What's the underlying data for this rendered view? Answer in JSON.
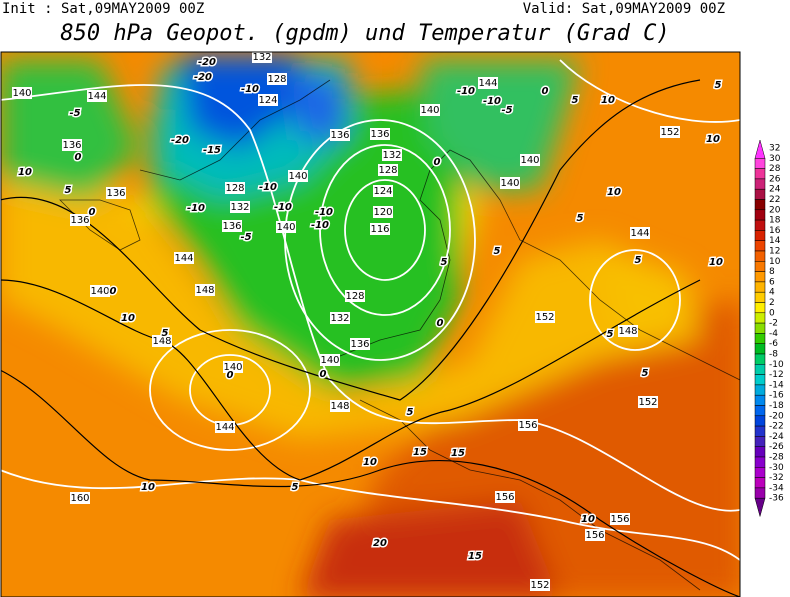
{
  "header": {
    "init": "Init : Sat,09MAY2009 00Z",
    "valid": "Valid: Sat,09MAY2009 00Z",
    "title": "850 hPa Geopot. (gpdm) und Temperatur (Grad C)"
  },
  "map": {
    "geopotential_labels": [
      140,
      144,
      136,
      136,
      136,
      144,
      140,
      148,
      148,
      140,
      144,
      160,
      132,
      128,
      124,
      128,
      132,
      136,
      140,
      140,
      136,
      136,
      140,
      132,
      128,
      124,
      120,
      116,
      128,
      132,
      136,
      140,
      148,
      144,
      140,
      140,
      152,
      144,
      152,
      148,
      152,
      156,
      156,
      156,
      156,
      152
    ],
    "temperature_labels": [
      -20,
      -20,
      -10,
      -5,
      -20,
      -15,
      -10,
      -10,
      -5,
      -10,
      -10,
      -10,
      0,
      5,
      10,
      0,
      0,
      10,
      5,
      0,
      0,
      5,
      10,
      15,
      15,
      5,
      10,
      20,
      15,
      10,
      10,
      10,
      5,
      5,
      10,
      5,
      10,
      5,
      5,
      5,
      0,
      5,
      -10,
      -10,
      -5,
      0,
      0,
      5
    ]
  },
  "colorbar": {
    "labels": [
      32,
      30,
      28,
      26,
      24,
      22,
      20,
      18,
      16,
      14,
      12,
      10,
      8,
      6,
      4,
      2,
      0,
      -2,
      -4,
      -6,
      -8,
      -10,
      -12,
      -14,
      -16,
      -18,
      -20,
      -22,
      -24,
      -26,
      -28,
      -30,
      -32,
      -34,
      -36
    ],
    "colors": [
      "#ff33ff",
      "#ff44dd",
      "#ee3399",
      "#cc2277",
      "#aa1144",
      "#880000",
      "#a00010",
      "#c01010",
      "#d82200",
      "#ec4400",
      "#f26000",
      "#f87800",
      "#ff9900",
      "#ffb400",
      "#ffcc00",
      "#ffee00",
      "#ccee00",
      "#88dd00",
      "#33cc00",
      "#00bb22",
      "#00cc66",
      "#00ccaa",
      "#00cccc",
      "#00aadd",
      "#0088ee",
      "#0066ee",
      "#0044dd",
      "#2233cc",
      "#4422bb",
      "#6600bb",
      "#8800cc",
      "#aa00cc",
      "#bb00bb",
      "#9900aa",
      "#660088"
    ]
  }
}
